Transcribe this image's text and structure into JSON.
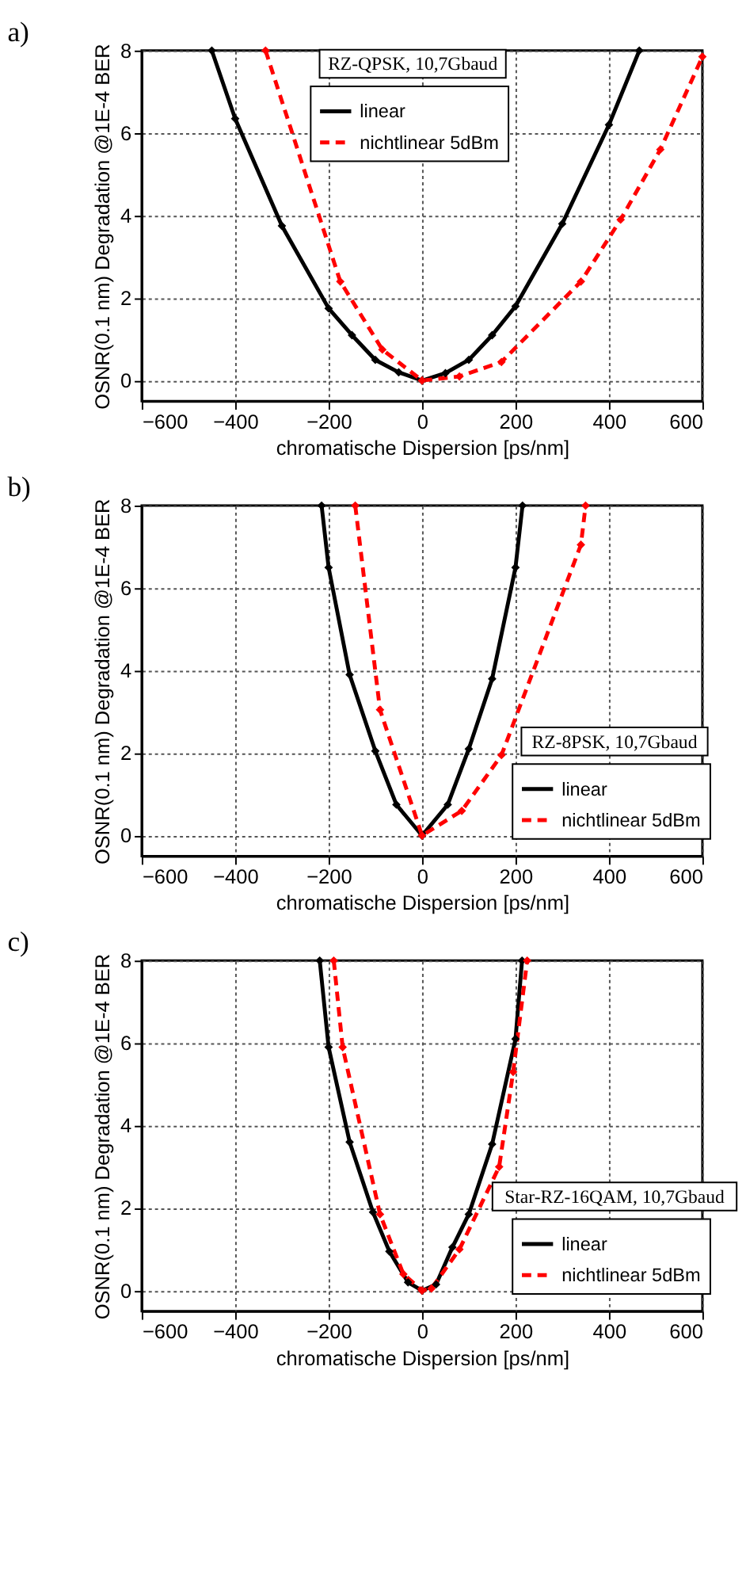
{
  "chart_data": [
    {
      "type": "line",
      "title": "a)",
      "xlabel": "chromatische Dispersion [ps/nm]",
      "ylabel": "OSNR(0.1 nm) Degradation @1E-4 BER",
      "annotations": [
        "RZ-QPSK, 10,7Gbaud"
      ],
      "xlim": [
        -600,
        600
      ],
      "xticks": [
        -600,
        -400,
        -200,
        0,
        200,
        400,
        600
      ],
      "ylim": [
        -0.5,
        8
      ],
      "yticks": [
        0,
        2,
        4,
        6,
        8
      ],
      "grid": true,
      "legend": "top",
      "marker": "diamond",
      "series": [
        {
          "name": "linear",
          "color": "#000000",
          "line_style": "solid",
          "x": [
            -450,
            -400,
            -300,
            -200,
            -150,
            -100,
            -50,
            0,
            50,
            100,
            150,
            200,
            300,
            400,
            465
          ],
          "values": [
            8,
            6.35,
            3.75,
            1.75,
            1.1,
            0.5,
            0.2,
            0,
            0.18,
            0.5,
            1.1,
            1.8,
            3.8,
            6.2,
            8
          ]
        },
        {
          "name": "nichtlinear 5dBm",
          "color": "#ff0000",
          "line_style": "dashed",
          "x": [
            -335,
            -175,
            -85,
            0,
            80,
            170,
            340,
            425,
            510,
            600
          ],
          "values": [
            8,
            2.4,
            0.75,
            0,
            0.1,
            0.45,
            2.4,
            3.9,
            5.6,
            7.85
          ]
        }
      ]
    },
    {
      "type": "line",
      "title": "b)",
      "xlabel": "chromatische Dispersion [ps/nm]",
      "ylabel": "OSNR(0.1 nm) Degradation @1E-4 BER",
      "annotations": [
        "RZ-8PSK, 10,7Gbaud"
      ],
      "xlim": [
        -600,
        600
      ],
      "xticks": [
        -600,
        -400,
        -200,
        0,
        200,
        400,
        600
      ],
      "ylim": [
        -0.5,
        8
      ],
      "yticks": [
        0,
        2,
        4,
        6,
        8
      ],
      "grid": true,
      "legend": "bottom right",
      "marker": "diamond",
      "series": [
        {
          "name": "linear",
          "color": "#000000",
          "line_style": "solid",
          "x": [
            -215,
            -200,
            -155,
            -100,
            -55,
            0,
            55,
            100,
            150,
            200,
            215
          ],
          "values": [
            8,
            6.5,
            3.9,
            2.05,
            0.75,
            0,
            0.75,
            2.1,
            3.8,
            6.5,
            8
          ]
        },
        {
          "name": "nichtlinear 5dBm",
          "color": "#ff0000",
          "line_style": "dashed",
          "x": [
            -143,
            -90,
            0,
            85,
            170,
            340,
            350
          ],
          "values": [
            8,
            3.05,
            0,
            0.6,
            1.95,
            7.05,
            8
          ]
        }
      ]
    },
    {
      "type": "line",
      "title": "c)",
      "xlabel": "chromatische Dispersion [ps/nm]",
      "ylabel": "OSNR(0.1 nm) Degradation @1E-4 BER",
      "annotations": [
        "Star-RZ-16QAM, 10,7Gbaud"
      ],
      "xlim": [
        -600,
        600
      ],
      "xticks": [
        -600,
        -400,
        -200,
        0,
        200,
        400,
        600
      ],
      "ylim": [
        -0.5,
        8
      ],
      "yticks": [
        0,
        2,
        4,
        6,
        8
      ],
      "grid": true,
      "legend": "bottom right",
      "marker": "diamond",
      "series": [
        {
          "name": "linear",
          "color": "#000000",
          "line_style": "solid",
          "x": [
            -219,
            -200,
            -155,
            -105,
            -70,
            -30,
            0,
            30,
            65,
            100,
            150,
            200,
            214
          ],
          "values": [
            8,
            5.9,
            3.6,
            1.9,
            0.95,
            0.2,
            0,
            0.15,
            1.05,
            1.85,
            3.55,
            6.1,
            8
          ]
        },
        {
          "name": "nichtlinear 5dBm",
          "color": "#ff0000",
          "line_style": "dashed",
          "x": [
            -189,
            -170,
            -90,
            -40,
            0,
            20,
            80,
            165,
            195,
            225
          ],
          "values": [
            8,
            5.9,
            1.85,
            0.4,
            0,
            0.05,
            1.0,
            3.0,
            5.3,
            8
          ]
        }
      ]
    }
  ]
}
